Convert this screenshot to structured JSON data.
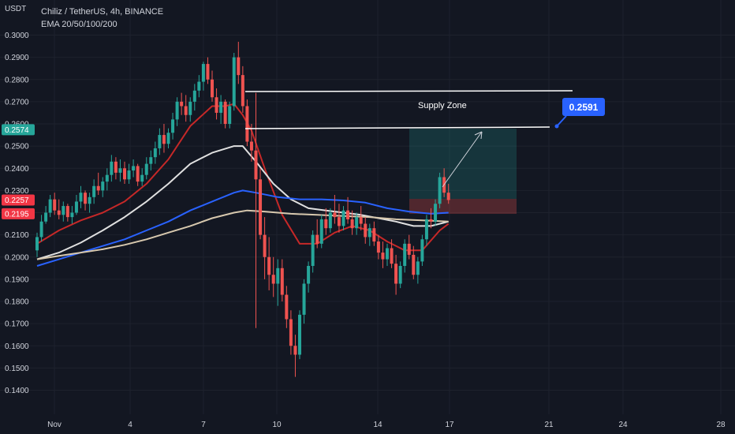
{
  "header": {
    "title": "Chiliz / TetherUS, 4h, BINANCE",
    "indicator": "EMA 20/50/100/200",
    "y_unit": "USDT"
  },
  "colors": {
    "background": "#131722",
    "grid": "#1e222d",
    "up_candle": "#26a69a",
    "down_candle": "#ef5350",
    "ema20": "#c62828",
    "ema50": "#e0e0e0",
    "ema100": "#2962ff",
    "ema200": "#d7c8ae",
    "price_tag_blue": "#2962ff",
    "price_tag_green": "#26a69a",
    "price_tag_red": "#f23645"
  },
  "annotations": {
    "supply_zone_label": "Supply Zone",
    "target_label": "0.2591"
  },
  "price_tags": [
    {
      "label": "0.2574",
      "value": 0.2574,
      "color": "#26a69a"
    },
    {
      "label": "0.2257",
      "value": 0.2257,
      "color": "#f23645"
    },
    {
      "label": "0.2195",
      "value": 0.2195,
      "color": "#f23645"
    }
  ],
  "chart_data": {
    "type": "candlestick",
    "title": "Chiliz / TetherUS, 4h, BINANCE",
    "ylabel": "USDT",
    "ylim": [
      0.137,
      0.3045
    ],
    "y_ticks": [
      "0.3000",
      "0.2900",
      "0.2800",
      "0.2700",
      "0.2600",
      "0.2500",
      "0.2400",
      "0.2300",
      "0.2200",
      "0.2100",
      "0.2000",
      "0.1900",
      "0.1800",
      "0.1700",
      "0.1600",
      "0.1500",
      "0.1400"
    ],
    "x_ticks": [
      "Nov",
      "4",
      "7",
      "10",
      "14",
      "17",
      "21",
      "24",
      "28"
    ],
    "grid": true,
    "candles": [
      [
        0.203,
        0.211,
        0.2,
        0.209
      ],
      [
        0.209,
        0.219,
        0.207,
        0.216
      ],
      [
        0.216,
        0.223,
        0.215,
        0.22
      ],
      [
        0.22,
        0.228,
        0.218,
        0.226
      ],
      [
        0.226,
        0.229,
        0.219,
        0.221
      ],
      [
        0.221,
        0.226,
        0.217,
        0.219
      ],
      [
        0.219,
        0.225,
        0.216,
        0.223
      ],
      [
        0.223,
        0.224,
        0.216,
        0.218
      ],
      [
        0.218,
        0.223,
        0.215,
        0.22
      ],
      [
        0.22,
        0.228,
        0.219,
        0.225
      ],
      [
        0.225,
        0.232,
        0.222,
        0.229
      ],
      [
        0.229,
        0.23,
        0.221,
        0.224
      ],
      [
        0.224,
        0.229,
        0.22,
        0.227
      ],
      [
        0.227,
        0.235,
        0.224,
        0.232
      ],
      [
        0.232,
        0.238,
        0.228,
        0.23
      ],
      [
        0.23,
        0.236,
        0.227,
        0.234
      ],
      [
        0.234,
        0.24,
        0.23,
        0.237
      ],
      [
        0.237,
        0.246,
        0.234,
        0.243
      ],
      [
        0.243,
        0.245,
        0.235,
        0.238
      ],
      [
        0.238,
        0.244,
        0.234,
        0.24
      ],
      [
        0.24,
        0.243,
        0.233,
        0.235
      ],
      [
        0.235,
        0.242,
        0.233,
        0.239
      ],
      [
        0.239,
        0.244,
        0.236,
        0.241
      ],
      [
        0.241,
        0.242,
        0.232,
        0.234
      ],
      [
        0.234,
        0.24,
        0.232,
        0.237
      ],
      [
        0.237,
        0.245,
        0.235,
        0.242
      ],
      [
        0.242,
        0.248,
        0.239,
        0.245
      ],
      [
        0.245,
        0.252,
        0.242,
        0.249
      ],
      [
        0.249,
        0.258,
        0.246,
        0.255
      ],
      [
        0.255,
        0.26,
        0.247,
        0.251
      ],
      [
        0.251,
        0.258,
        0.249,
        0.256
      ],
      [
        0.256,
        0.265,
        0.253,
        0.262
      ],
      [
        0.262,
        0.272,
        0.259,
        0.27
      ],
      [
        0.27,
        0.274,
        0.264,
        0.268
      ],
      [
        0.268,
        0.273,
        0.261,
        0.264
      ],
      [
        0.264,
        0.272,
        0.261,
        0.27
      ],
      [
        0.27,
        0.278,
        0.266,
        0.275
      ],
      [
        0.275,
        0.282,
        0.272,
        0.279
      ],
      [
        0.279,
        0.288,
        0.275,
        0.287
      ],
      [
        0.287,
        0.29,
        0.278,
        0.28
      ],
      [
        0.28,
        0.284,
        0.27,
        0.272
      ],
      [
        0.272,
        0.276,
        0.262,
        0.265
      ],
      [
        0.265,
        0.273,
        0.26,
        0.27
      ],
      [
        0.27,
        0.271,
        0.258,
        0.26
      ],
      [
        0.26,
        0.27,
        0.258,
        0.268
      ],
      [
        0.268,
        0.292,
        0.266,
        0.29
      ],
      [
        0.29,
        0.297,
        0.278,
        0.282
      ],
      [
        0.282,
        0.286,
        0.265,
        0.268
      ],
      [
        0.268,
        0.271,
        0.25,
        0.252
      ],
      [
        0.252,
        0.26,
        0.243,
        0.248
      ],
      [
        0.248,
        0.274,
        0.168,
        0.235
      ],
      [
        0.235,
        0.24,
        0.208,
        0.21
      ],
      [
        0.21,
        0.218,
        0.19,
        0.2
      ],
      [
        0.2,
        0.209,
        0.185,
        0.192
      ],
      [
        0.192,
        0.2,
        0.182,
        0.188
      ],
      [
        0.188,
        0.199,
        0.178,
        0.195
      ],
      [
        0.195,
        0.199,
        0.18,
        0.183
      ],
      [
        0.183,
        0.187,
        0.168,
        0.172
      ],
      [
        0.172,
        0.176,
        0.156,
        0.16
      ],
      [
        0.16,
        0.165,
        0.146,
        0.156
      ],
      [
        0.156,
        0.176,
        0.154,
        0.174
      ],
      [
        0.174,
        0.19,
        0.17,
        0.188
      ],
      [
        0.188,
        0.198,
        0.184,
        0.196
      ],
      [
        0.196,
        0.212,
        0.193,
        0.21
      ],
      [
        0.21,
        0.217,
        0.204,
        0.206
      ],
      [
        0.206,
        0.219,
        0.204,
        0.217
      ],
      [
        0.217,
        0.222,
        0.21,
        0.213
      ],
      [
        0.213,
        0.222,
        0.211,
        0.22
      ],
      [
        0.22,
        0.228,
        0.215,
        0.218
      ],
      [
        0.218,
        0.224,
        0.211,
        0.214
      ],
      [
        0.214,
        0.223,
        0.212,
        0.221
      ],
      [
        0.221,
        0.227,
        0.215,
        0.217
      ],
      [
        0.217,
        0.221,
        0.21,
        0.213
      ],
      [
        0.213,
        0.22,
        0.21,
        0.218
      ],
      [
        0.218,
        0.223,
        0.212,
        0.215
      ],
      [
        0.215,
        0.218,
        0.206,
        0.209
      ],
      [
        0.209,
        0.215,
        0.205,
        0.213
      ],
      [
        0.213,
        0.216,
        0.205,
        0.207
      ],
      [
        0.207,
        0.21,
        0.199,
        0.202
      ],
      [
        0.202,
        0.207,
        0.195,
        0.199
      ],
      [
        0.199,
        0.206,
        0.196,
        0.204
      ],
      [
        0.204,
        0.208,
        0.195,
        0.197
      ],
      [
        0.197,
        0.201,
        0.183,
        0.188
      ],
      [
        0.188,
        0.198,
        0.186,
        0.196
      ],
      [
        0.196,
        0.208,
        0.193,
        0.206
      ],
      [
        0.206,
        0.21,
        0.199,
        0.201
      ],
      [
        0.201,
        0.205,
        0.19,
        0.192
      ],
      [
        0.192,
        0.2,
        0.188,
        0.198
      ],
      [
        0.198,
        0.21,
        0.196,
        0.208
      ],
      [
        0.208,
        0.219,
        0.205,
        0.217
      ],
      [
        0.217,
        0.222,
        0.213,
        0.216
      ],
      [
        0.216,
        0.226,
        0.214,
        0.224
      ],
      [
        0.224,
        0.238,
        0.222,
        0.236
      ],
      [
        0.236,
        0.24,
        0.227,
        0.229
      ],
      [
        0.229,
        0.233,
        0.224,
        0.2257
      ]
    ],
    "series": [
      {
        "name": "EMA 20",
        "values": [
          [
            0,
            0.206
          ],
          [
            5,
            0.212
          ],
          [
            10,
            0.2165
          ],
          [
            15,
            0.22
          ],
          [
            20,
            0.225
          ],
          [
            25,
            0.233
          ],
          [
            30,
            0.244
          ],
          [
            35,
            0.259
          ],
          [
            40,
            0.268
          ],
          [
            43,
            0.268
          ],
          [
            45,
            0.269
          ],
          [
            47,
            0.264
          ],
          [
            49,
            0.257
          ],
          [
            52,
            0.24
          ],
          [
            56,
            0.219
          ],
          [
            60,
            0.206
          ],
          [
            64,
            0.206
          ],
          [
            68,
            0.211
          ],
          [
            72,
            0.214
          ],
          [
            76,
            0.212
          ],
          [
            80,
            0.207
          ],
          [
            84,
            0.203
          ],
          [
            88,
            0.203
          ],
          [
            92,
            0.212
          ],
          [
            94,
            0.215
          ]
        ]
      },
      {
        "name": "EMA 50",
        "values": [
          [
            0,
            0.199
          ],
          [
            5,
            0.202
          ],
          [
            10,
            0.2065
          ],
          [
            15,
            0.212
          ],
          [
            20,
            0.218
          ],
          [
            25,
            0.225
          ],
          [
            30,
            0.233
          ],
          [
            35,
            0.242
          ],
          [
            40,
            0.247
          ],
          [
            45,
            0.25
          ],
          [
            47,
            0.25
          ],
          [
            50,
            0.243
          ],
          [
            54,
            0.233
          ],
          [
            58,
            0.226
          ],
          [
            62,
            0.222
          ],
          [
            66,
            0.221
          ],
          [
            70,
            0.22
          ],
          [
            74,
            0.219
          ],
          [
            78,
            0.2175
          ],
          [
            82,
            0.216
          ],
          [
            86,
            0.214
          ],
          [
            90,
            0.214
          ],
          [
            94,
            0.216
          ]
        ]
      },
      {
        "name": "EMA 100",
        "values": [
          [
            0,
            0.196
          ],
          [
            5,
            0.199
          ],
          [
            10,
            0.202
          ],
          [
            15,
            0.205
          ],
          [
            20,
            0.208
          ],
          [
            25,
            0.212
          ],
          [
            30,
            0.216
          ],
          [
            35,
            0.221
          ],
          [
            40,
            0.225
          ],
          [
            45,
            0.229
          ],
          [
            47,
            0.23
          ],
          [
            50,
            0.229
          ],
          [
            55,
            0.227
          ],
          [
            60,
            0.226
          ],
          [
            65,
            0.226
          ],
          [
            70,
            0.2255
          ],
          [
            75,
            0.2245
          ],
          [
            80,
            0.222
          ],
          [
            85,
            0.2205
          ],
          [
            90,
            0.2195
          ],
          [
            94,
            0.22
          ]
        ]
      },
      {
        "name": "EMA 200",
        "values": [
          [
            0,
            0.199
          ],
          [
            5,
            0.2005
          ],
          [
            10,
            0.202
          ],
          [
            15,
            0.2035
          ],
          [
            20,
            0.2055
          ],
          [
            25,
            0.208
          ],
          [
            30,
            0.211
          ],
          [
            35,
            0.214
          ],
          [
            40,
            0.2175
          ],
          [
            45,
            0.22
          ],
          [
            48,
            0.221
          ],
          [
            52,
            0.2205
          ],
          [
            58,
            0.2195
          ],
          [
            64,
            0.219
          ],
          [
            70,
            0.2185
          ],
          [
            76,
            0.218
          ],
          [
            82,
            0.217
          ],
          [
            88,
            0.2165
          ],
          [
            94,
            0.216
          ]
        ]
      }
    ]
  }
}
